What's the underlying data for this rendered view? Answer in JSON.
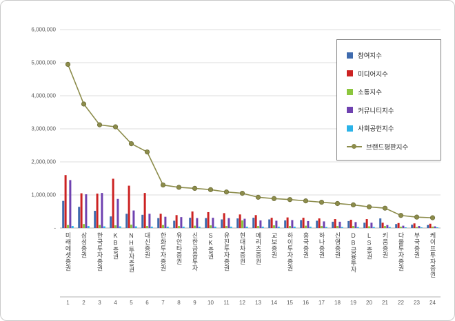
{
  "accent_colors": {
    "grid": "#dcdcdc",
    "axis": "#b0b0b0",
    "tick_text": "#595959",
    "category_text": "#404040"
  },
  "chart_data": {
    "type": "bar",
    "title": "",
    "xlabel": "",
    "ylabel": "",
    "ylim": [
      0,
      6000000
    ],
    "grid": true,
    "legend_position": "top-right",
    "yticks": [
      "6,000,000",
      "5,000,000",
      "4,000,000",
      "3,000,000",
      "2,000,000",
      "1,000,000",
      "-"
    ],
    "categories": [
      "미래에셋증권",
      "삼성증권",
      "한국투자증권",
      "KB증권",
      "NH투자증권",
      "대신증권",
      "한화투자증권",
      "유안타증권",
      "신한금융투자",
      "SK증권",
      "유진투자증권",
      "현대차증권",
      "메리츠증권",
      "교보증권",
      "하이투자증권",
      "흥국증권",
      "하나증권",
      "신영증권",
      "DB금융투자",
      "LS증권",
      "키움증권",
      "다올투자증권",
      "부국증권",
      "케이프투자증권"
    ],
    "ranks": [
      "1",
      "2",
      "3",
      "4",
      "5",
      "6",
      "7",
      "8",
      "9",
      "10",
      "11",
      "12",
      "13",
      "14",
      "15",
      "16",
      "17",
      "18",
      "19",
      "20",
      "21",
      "22",
      "23",
      "24"
    ],
    "series": [
      {
        "key": "participation",
        "name": "참여지수",
        "type": "bar",
        "color": "#3f6bae",
        "values": [
          820000,
          640000,
          520000,
          350000,
          430000,
          400000,
          300000,
          220000,
          310000,
          300000,
          260000,
          290000,
          310000,
          260000,
          230000,
          240000,
          220000,
          190000,
          210000,
          160000,
          290000,
          120000,
          100000,
          90000
        ]
      },
      {
        "key": "media",
        "name": "미디어지수",
        "type": "bar",
        "color": "#cc2222",
        "values": [
          1600000,
          1050000,
          1040000,
          1490000,
          1280000,
          1060000,
          430000,
          390000,
          500000,
          480000,
          450000,
          410000,
          390000,
          310000,
          320000,
          310000,
          290000,
          270000,
          250000,
          270000,
          160000,
          150000,
          140000,
          130000
        ]
      },
      {
        "key": "communication",
        "name": "소통지수",
        "type": "bar",
        "color": "#8cc63e",
        "values": [
          90000,
          120000,
          90000,
          80000,
          100000,
          60000,
          90000,
          60000,
          70000,
          80000,
          60000,
          230000,
          60000,
          80000,
          60000,
          70000,
          60000,
          60000,
          60000,
          50000,
          60000,
          40000,
          30000,
          40000
        ]
      },
      {
        "key": "community",
        "name": "커뮤니티지수",
        "type": "bar",
        "color": "#6f42b0",
        "values": [
          1450000,
          1020000,
          1060000,
          880000,
          530000,
          430000,
          340000,
          330000,
          300000,
          310000,
          300000,
          280000,
          230000,
          220000,
          240000,
          210000,
          200000,
          190000,
          180000,
          160000,
          90000,
          70000,
          60000,
          50000
        ]
      },
      {
        "key": "social",
        "name": "사회공헌지수",
        "type": "bar",
        "color": "#2bb3e8",
        "values": [
          60000,
          60000,
          50000,
          50000,
          50000,
          40000,
          40000,
          40000,
          40000,
          40000,
          40000,
          40000,
          40000,
          40000,
          40000,
          40000,
          30000,
          30000,
          30000,
          30000,
          30000,
          20000,
          20000,
          20000
        ]
      },
      {
        "key": "brand",
        "name": "브랜드평판지수",
        "type": "line",
        "color": "#8c8c4b",
        "values": [
          4950000,
          3750000,
          3120000,
          3060000,
          2550000,
          2300000,
          1300000,
          1230000,
          1200000,
          1160000,
          1090000,
          1050000,
          930000,
          890000,
          860000,
          820000,
          780000,
          740000,
          700000,
          640000,
          600000,
          380000,
          330000,
          310000
        ]
      }
    ]
  }
}
